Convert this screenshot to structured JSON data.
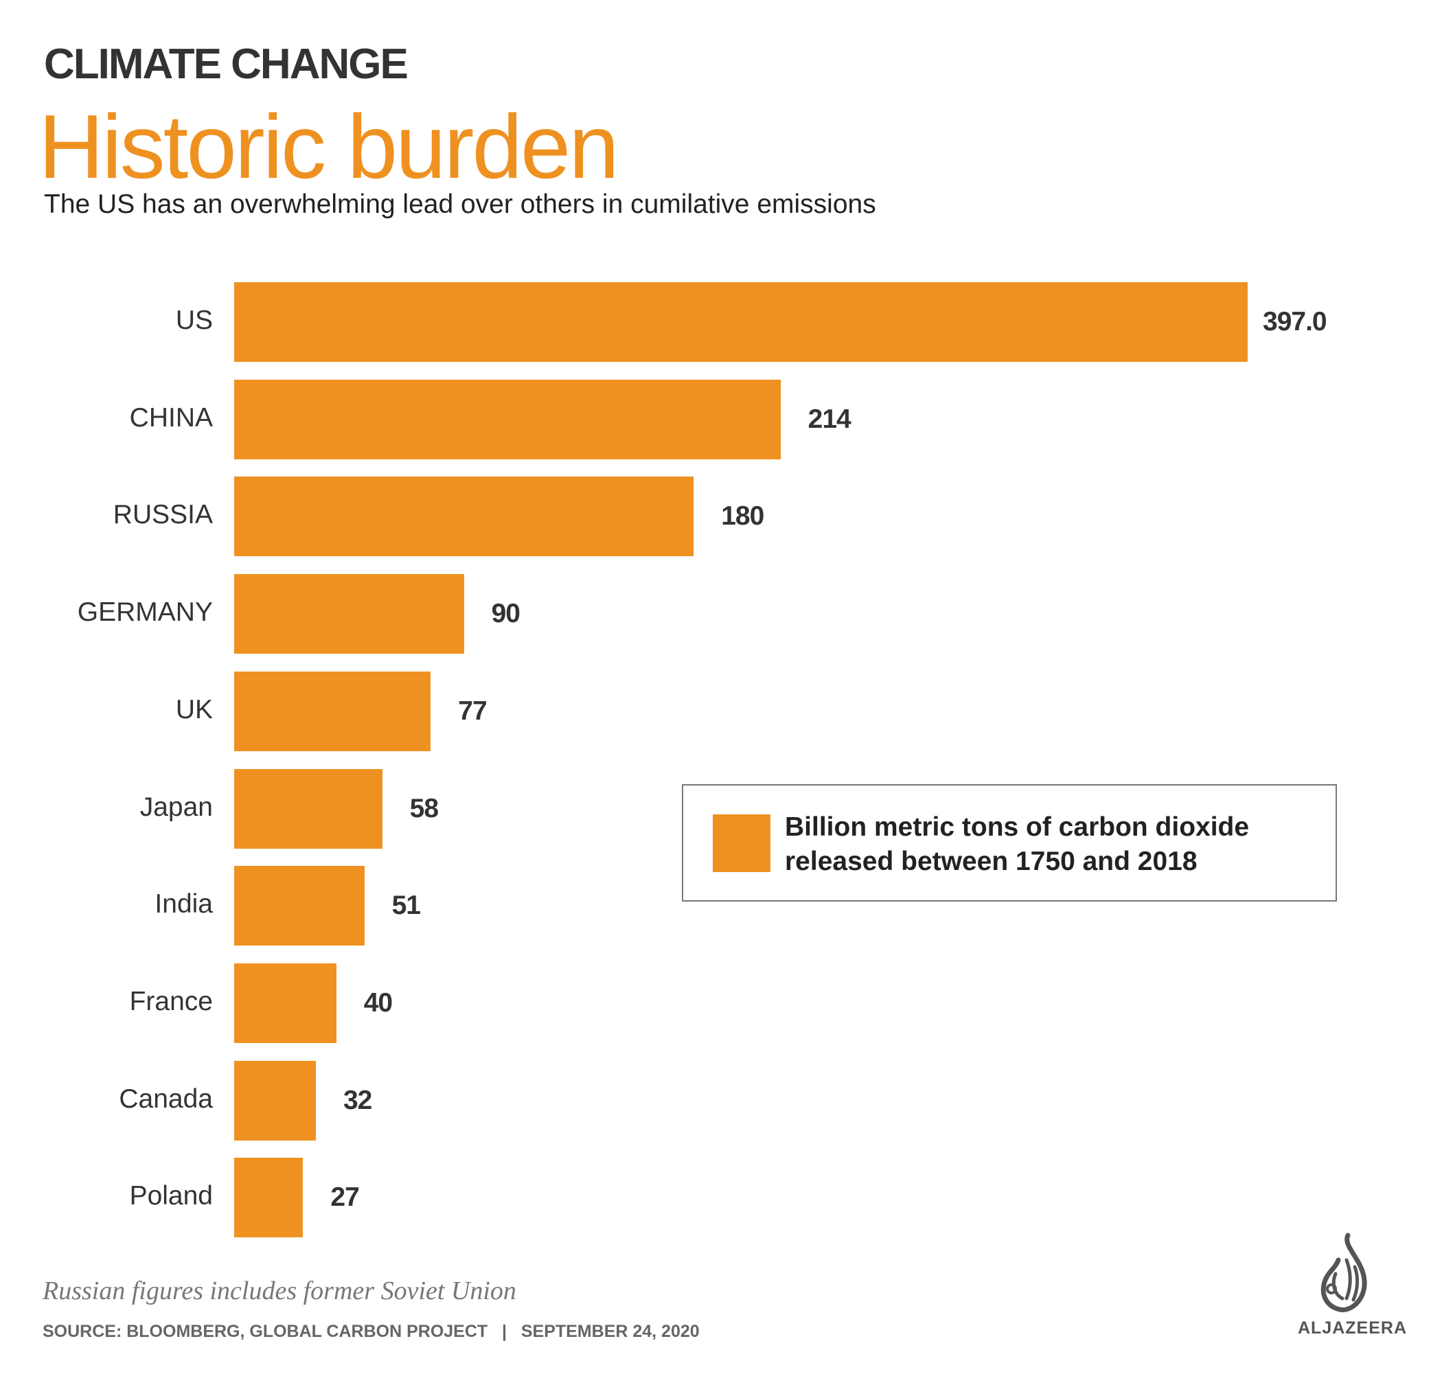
{
  "header": {
    "kicker": "CLIMATE CHANGE",
    "title": "Historic burden",
    "subtitle": "The US has an overwhelming lead over others in cumilative emissions"
  },
  "chart_data": {
    "type": "bar",
    "orientation": "horizontal",
    "title": "Historic burden",
    "categories": [
      "US",
      "CHINA",
      "RUSSIA",
      "GERMANY",
      "UK",
      "Japan",
      "India",
      "France",
      "Canada",
      "Poland"
    ],
    "values": [
      397.0,
      214,
      180,
      90,
      77,
      58,
      51,
      40,
      32,
      27
    ],
    "value_labels": [
      "397.0",
      "214",
      "180",
      "90",
      "77",
      "58",
      "51",
      "40",
      "32",
      "27"
    ],
    "xlabel": "",
    "ylabel": "",
    "xlim": [
      0,
      397
    ],
    "grid": false,
    "color": "#ef9120",
    "legend": {
      "placement": "right",
      "entries": [
        "Billion metric tons of carbon dioxide released between 1750 and 2018"
      ]
    }
  },
  "footer": {
    "note": "Russian figures includes former Soviet Union",
    "source": "SOURCE: BLOOMBERG, GLOBAL CARBON PROJECT   |   SEPTEMBER 24, 2020",
    "logo_text": "ALJAZEERA"
  }
}
